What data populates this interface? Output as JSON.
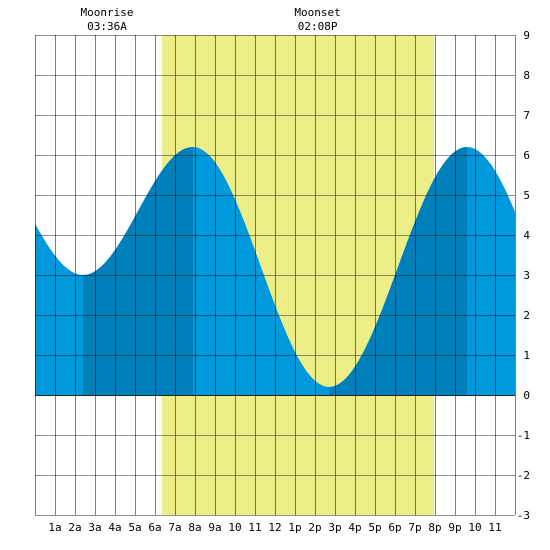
{
  "chart_data": {
    "type": "area",
    "x_tick_labels": [
      "1a",
      "2a",
      "3a",
      "4a",
      "5a",
      "6a",
      "7a",
      "8a",
      "9a",
      "10",
      "11",
      "12",
      "1p",
      "2p",
      "3p",
      "4p",
      "5p",
      "6p",
      "7p",
      "8p",
      "9p",
      "10",
      "11"
    ],
    "xlim": [
      0,
      24
    ],
    "ylim": [
      -3,
      9
    ],
    "y_ticks": [
      -3,
      -2,
      -1,
      0,
      1,
      2,
      3,
      4,
      5,
      6,
      7,
      8,
      9
    ],
    "grid": true,
    "daylight": {
      "start_hour": 6.35,
      "end_hour": 19.95
    },
    "annotations": [
      {
        "label": "Moonrise",
        "time": "03:36A",
        "hour": 3.6
      },
      {
        "label": "Moonset",
        "time": "02:08P",
        "hour": 14.13
      }
    ],
    "tide_extremes": [
      {
        "hour": 2.4,
        "height": 3.0
      },
      {
        "hour": 7.9,
        "height": 6.2
      },
      {
        "hour": 14.7,
        "height": 0.2
      },
      {
        "hour": 21.6,
        "height": 6.2
      }
    ],
    "tide_start_height": 4.15,
    "tide_end_height": 4.9,
    "dark_bands": [
      {
        "start_hour": 2.4,
        "end_hour": 7.9
      },
      {
        "start_hour": 14.7,
        "end_hour": 21.6
      }
    ],
    "colors": {
      "tide": "#0099dd",
      "tide_band": "#0080bb",
      "daylight": "#eeee88",
      "grid": "#000000"
    }
  }
}
